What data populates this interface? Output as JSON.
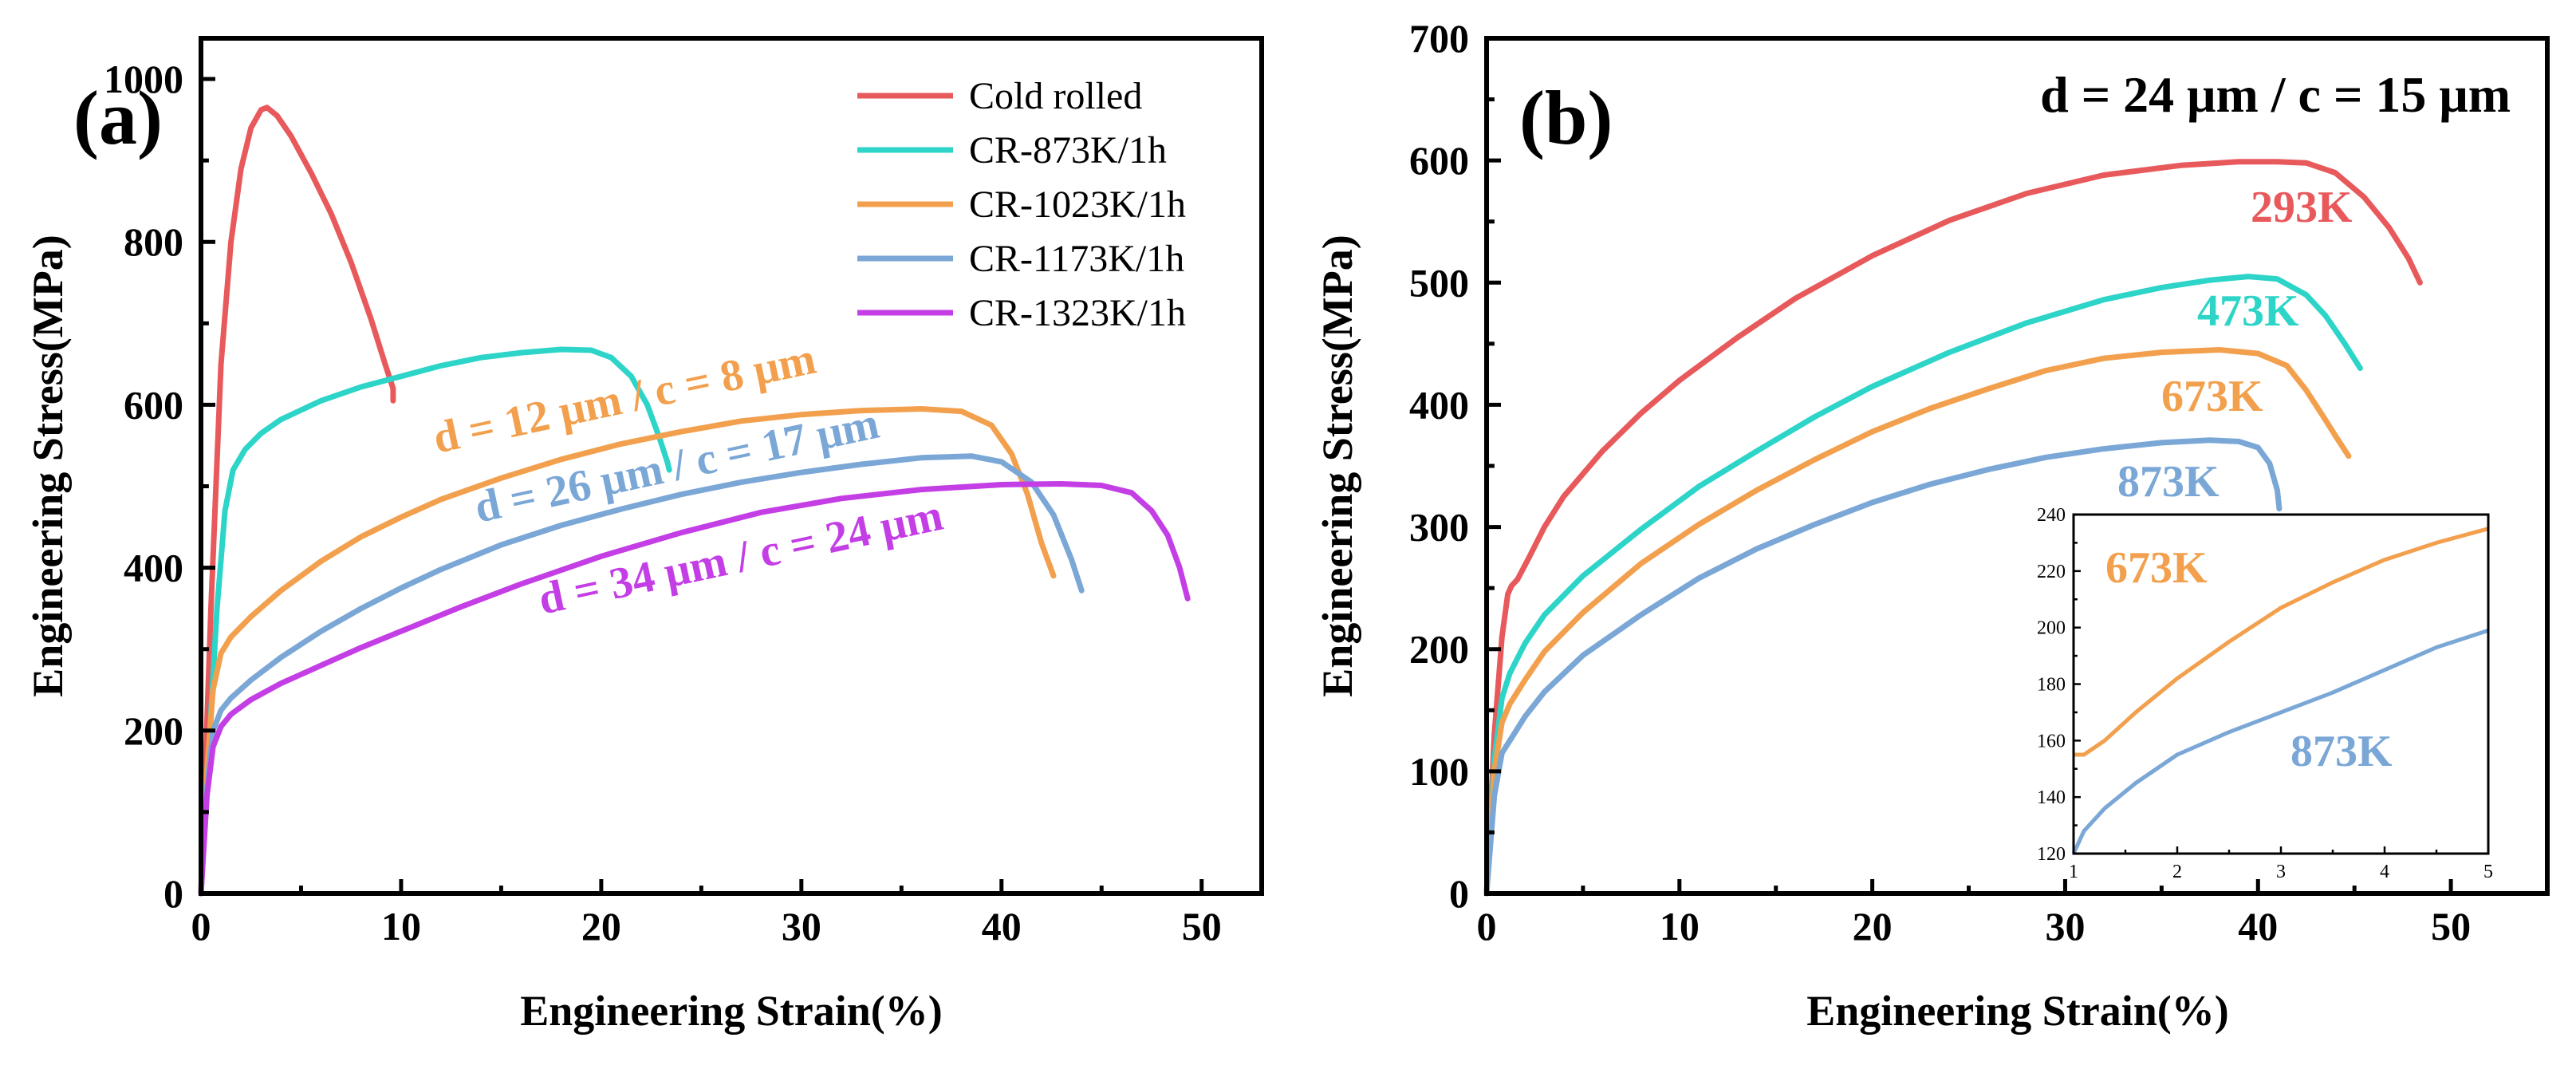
{
  "colors": {
    "red": "#e8595c",
    "cyan": "#2dd4c8",
    "orange": "#f2a04d",
    "blue": "#7aa7d6",
    "magenta": "#c43ee6"
  },
  "chart_data": [
    {
      "type": "line",
      "panel_label": "(a)",
      "xlabel": "Engineering Strain(%)",
      "ylabel": "Engineering Stress(MPa)",
      "xlim": [
        0,
        53
      ],
      "ylim": [
        0,
        1050
      ],
      "xticks": [
        "0",
        "10",
        "20",
        "30",
        "40",
        "50"
      ],
      "yticks": [
        "0",
        "200",
        "400",
        "600",
        "800",
        "1000"
      ],
      "legend": [
        "Cold rolled",
        "CR-873K/1h",
        "CR-1023K/1h",
        "CR-1173K/1h",
        "CR-1323K/1h"
      ],
      "annotations": [
        "d = 12 μm / c = 8 μm",
        "d = 26 μm / c = 17 μm",
        "d = 34 μm / c = 24 μm"
      ],
      "series": [
        {
          "name": "Cold rolled",
          "color": "red",
          "x": [
            0,
            0.5,
            1.0,
            1.5,
            2.0,
            2.5,
            3.0,
            3.3,
            3.8,
            4.5,
            5.5,
            6.5,
            7.5,
            8.5,
            9.2,
            9.6,
            9.6
          ],
          "y": [
            0,
            350,
            650,
            800,
            890,
            940,
            962,
            965,
            955,
            930,
            885,
            835,
            775,
            705,
            650,
            620,
            605
          ]
        },
        {
          "name": "CR-873K/1h",
          "color": "cyan",
          "x": [
            0,
            0.4,
            0.8,
            1.2,
            1.6,
            2.2,
            3,
            4,
            6,
            8,
            10,
            12,
            14,
            16,
            18,
            19.5,
            20.5,
            21.5,
            22.3,
            22.9,
            23.3,
            23.4
          ],
          "y": [
            0,
            180,
            350,
            470,
            520,
            545,
            565,
            582,
            605,
            622,
            635,
            648,
            658,
            664,
            668,
            667,
            658,
            635,
            600,
            560,
            530,
            520
          ]
        },
        {
          "name": "CR-1023K/1h",
          "color": "orange",
          "x": [
            0,
            0.3,
            0.6,
            1.0,
            1.5,
            2.5,
            4,
            6,
            8,
            10,
            12,
            15,
            18,
            21,
            24,
            27,
            30,
            33,
            36,
            38,
            39.5,
            40.5,
            41.3,
            42,
            42.6
          ],
          "y": [
            0,
            150,
            250,
            295,
            315,
            340,
            372,
            408,
            438,
            462,
            484,
            510,
            533,
            552,
            567,
            580,
            588,
            593,
            595,
            592,
            575,
            540,
            490,
            430,
            390
          ]
        },
        {
          "name": "CR-1173K/1h",
          "color": "blue",
          "x": [
            0,
            0.3,
            0.6,
            1.0,
            1.5,
            2.5,
            4,
            6,
            8,
            10,
            12,
            15,
            18,
            21,
            24,
            27,
            30,
            33,
            36,
            38.5,
            40,
            41.5,
            42.6,
            43.5,
            44
          ],
          "y": [
            0,
            130,
            200,
            225,
            240,
            262,
            290,
            322,
            350,
            375,
            398,
            428,
            452,
            472,
            490,
            505,
            517,
            527,
            535,
            537,
            530,
            505,
            465,
            410,
            372
          ]
        },
        {
          "name": "CR-1323K/1h",
          "color": "magenta",
          "x": [
            0,
            0.3,
            0.6,
            1.0,
            1.5,
            2.5,
            4,
            6,
            8,
            10,
            13,
            16,
            20,
            24,
            28,
            32,
            36,
            40,
            43,
            45,
            46.5,
            47.5,
            48.3,
            48.9,
            49.3
          ],
          "y": [
            0,
            120,
            180,
            205,
            220,
            238,
            258,
            280,
            302,
            322,
            352,
            380,
            414,
            443,
            468,
            485,
            496,
            502,
            503,
            501,
            492,
            470,
            440,
            400,
            362
          ]
        }
      ]
    },
    {
      "type": "line",
      "panel_label": "(b)",
      "title": "d = 24 μm / c = 15 μm",
      "xlabel": "Engineering Strain(%)",
      "ylabel": "Engineering Stress(MPa)",
      "xlim": [
        0,
        55
      ],
      "ylim": [
        0,
        700
      ],
      "xticks": [
        "0",
        "10",
        "20",
        "30",
        "40",
        "50"
      ],
      "yticks": [
        "0",
        "100",
        "200",
        "300",
        "400",
        "500",
        "600",
        "700"
      ],
      "series_labels": [
        "293K",
        "473K",
        "673K",
        "873K"
      ],
      "series": [
        {
          "name": "293K",
          "color": "red",
          "x": [
            0,
            0.4,
            0.8,
            1.1,
            1.3,
            1.6,
            2.2,
            3,
            4,
            6,
            8,
            10,
            13,
            16,
            20,
            24,
            28,
            32,
            36,
            39,
            41,
            42.5,
            44,
            45.5,
            46.8,
            47.8,
            48.4
          ],
          "y": [
            0,
            130,
            210,
            245,
            252,
            257,
            275,
            300,
            325,
            362,
            393,
            420,
            455,
            487,
            522,
            551,
            573,
            588,
            596,
            599,
            599,
            598,
            590,
            570,
            545,
            520,
            500
          ]
        },
        {
          "name": "473K",
          "color": "cyan",
          "x": [
            0,
            0.4,
            0.8,
            1.2,
            2,
            3,
            5,
            8,
            11,
            14,
            17,
            20,
            24,
            28,
            32,
            35,
            37.5,
            39.5,
            41,
            42.5,
            43.5,
            44.5,
            45.3
          ],
          "y": [
            0,
            110,
            160,
            180,
            205,
            228,
            260,
            298,
            333,
            362,
            390,
            415,
            443,
            467,
            486,
            496,
            502,
            505,
            503,
            490,
            473,
            450,
            430
          ]
        },
        {
          "name": "673K",
          "color": "orange",
          "x": [
            0,
            0.4,
            0.8,
            1.2,
            2,
            3,
            5,
            8,
            11,
            14,
            17,
            20,
            23,
            26,
            29,
            32,
            35,
            38,
            40,
            41.5,
            42.5,
            43.4,
            44,
            44.7
          ],
          "y": [
            0,
            100,
            140,
            155,
            175,
            198,
            230,
            270,
            302,
            330,
            355,
            378,
            397,
            413,
            428,
            438,
            443,
            445,
            442,
            432,
            412,
            390,
            375,
            358
          ]
        },
        {
          "name": "873K",
          "color": "blue",
          "x": [
            0,
            0.4,
            0.8,
            1.2,
            2,
            3,
            5,
            8,
            11,
            14,
            17,
            20,
            23,
            26,
            29,
            32,
            35,
            37.5,
            39,
            40,
            40.6,
            41,
            41.1
          ],
          "y": [
            0,
            80,
            115,
            125,
            145,
            165,
            195,
            228,
            258,
            282,
            302,
            320,
            335,
            347,
            357,
            364,
            369,
            371,
            370,
            365,
            352,
            330,
            315
          ]
        }
      ]
    },
    {
      "type": "line",
      "panel_label": "inset",
      "xlim": [
        1,
        5
      ],
      "ylim": [
        120,
        240
      ],
      "xticks": [
        "1",
        "2",
        "3",
        "4",
        "5"
      ],
      "yticks": [
        "120",
        "140",
        "160",
        "180",
        "200",
        "220",
        "240"
      ],
      "series_labels": [
        "673K",
        "873K"
      ],
      "series": [
        {
          "name": "673K",
          "color": "orange",
          "x": [
            1.0,
            1.1,
            1.3,
            1.6,
            2.0,
            2.5,
            3.0,
            3.5,
            4.0,
            4.5,
            5.0
          ],
          "y": [
            155,
            155,
            160,
            170,
            182,
            195,
            207,
            216,
            224,
            230,
            235
          ]
        },
        {
          "name": "873K",
          "color": "blue",
          "x": [
            1.0,
            1.1,
            1.3,
            1.6,
            2.0,
            2.5,
            3.0,
            3.5,
            4.0,
            4.5,
            5.0
          ],
          "y": [
            120,
            128,
            136,
            145,
            155,
            163,
            170,
            177,
            185,
            193,
            199
          ]
        }
      ]
    }
  ]
}
